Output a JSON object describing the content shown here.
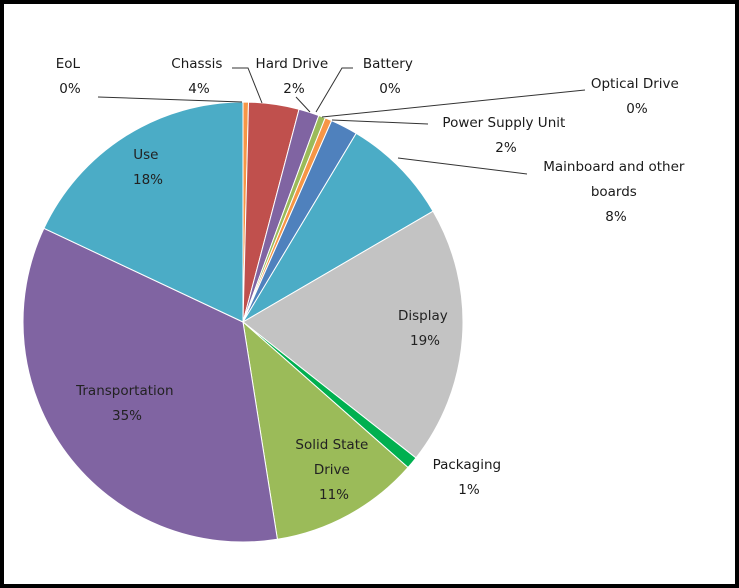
{
  "chart_data": {
    "type": "pie",
    "slices": [
      {
        "name": "EoL",
        "label": "0%",
        "value": 0.4,
        "color": "#F79646"
      },
      {
        "name": "Chassis",
        "label": "4%",
        "value": 3.7,
        "color": "#C0504D"
      },
      {
        "name": "Hard Drive",
        "label": "2%",
        "value": 1.5,
        "color": "#8064A2"
      },
      {
        "name": "Battery",
        "label": "0%",
        "value": 0.5,
        "color": "#9BBB59"
      },
      {
        "name": "Optical Drive",
        "label": "0%",
        "value": 0.5,
        "color": "#F79646"
      },
      {
        "name": "Power Supply Unit",
        "label": "2%",
        "value": 2.0,
        "color": "#4F81BD"
      },
      {
        "name": "Mainboard and other boards",
        "label": "8%",
        "value": 8.0,
        "color": "#4BACC6"
      },
      {
        "name": "Display",
        "label": "19%",
        "value": 19.0,
        "color": "#C3C3C3"
      },
      {
        "name": "Packaging",
        "label": "1%",
        "value": 0.9,
        "color": "#00B050"
      },
      {
        "name": "Solid State Drive",
        "label": "11%",
        "value": 11.0,
        "color": "#9BBB59"
      },
      {
        "name": "Transportation",
        "label": "35%",
        "value": 34.5,
        "color": "#8064A2"
      },
      {
        "name": "Use",
        "label": "18%",
        "value": 18.0,
        "color": "#4BACC6"
      }
    ]
  },
  "labels": {
    "eol": {
      "name": "EoL",
      "pct": "0%"
    },
    "chassis": {
      "name": "Chassis",
      "pct": "4%"
    },
    "hard_drive": {
      "name": "Hard Drive",
      "pct": "2%"
    },
    "battery": {
      "name": "Battery",
      "pct": "0%"
    },
    "optical_drive": {
      "name": "Optical Drive",
      "pct": "0%"
    },
    "power_supply": {
      "name": "Power Supply Unit",
      "pct": "2%"
    },
    "mainboard": {
      "line1": "Mainboard and other",
      "line2": "boards",
      "pct": "8%"
    },
    "display": {
      "name": "Display",
      "pct": "19%"
    },
    "packaging": {
      "name": "Packaging",
      "pct": "1%"
    },
    "ssd": {
      "line1": "Solid State",
      "line2": "Drive",
      "pct": "11%"
    },
    "transportation": {
      "name": "Transportation",
      "pct": "35%"
    },
    "use": {
      "name": "Use",
      "pct": "18%"
    }
  }
}
